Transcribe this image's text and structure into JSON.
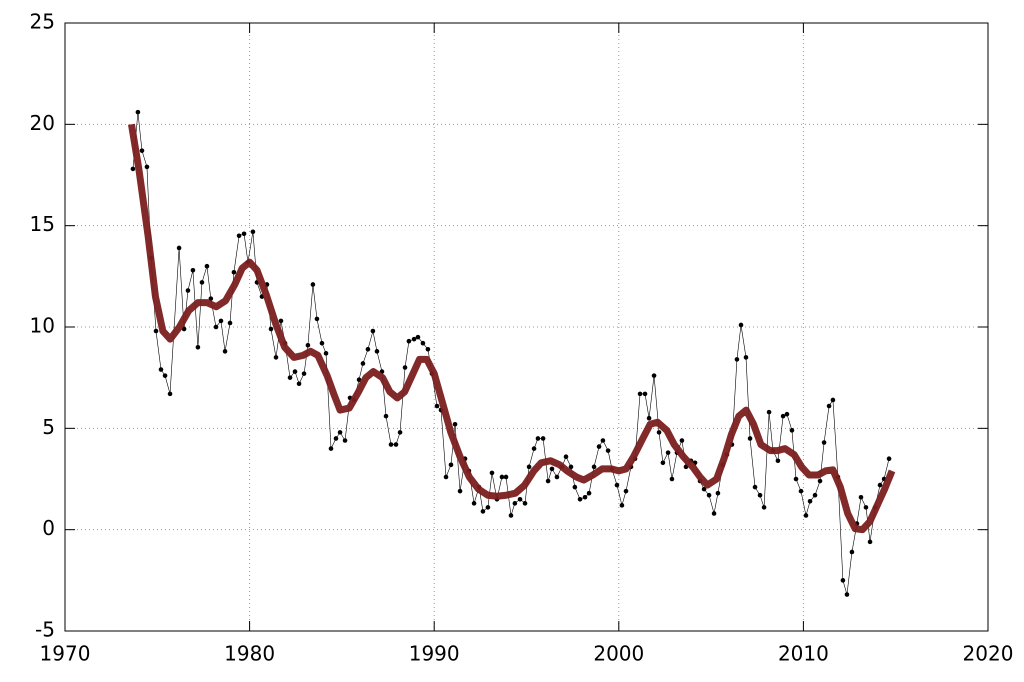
{
  "chart_data": {
    "type": "line",
    "xlim": [
      1970,
      2020
    ],
    "xticks": [
      1970,
      1980,
      1990,
      2000,
      2010,
      2020
    ],
    "ylim": [
      -5,
      25
    ],
    "yticks": [
      -5,
      0,
      5,
      10,
      15,
      20,
      25
    ],
    "grid": true,
    "series": [
      {
        "type": "scatter",
        "color": "#000000",
        "x": [
          1973.68,
          1973.95,
          1974.17,
          1974.44,
          1974.66,
          1974.93,
          1975.2,
          1975.42,
          1975.69,
          1976.18,
          1976.45,
          1976.66,
          1976.93,
          1977.2,
          1977.42,
          1977.69,
          1977.9,
          1978.18,
          1978.45,
          1978.67,
          1978.94,
          1979.15,
          1979.43,
          1979.7,
          1979.91,
          1980.18,
          1980.4,
          1980.67,
          1980.94,
          1981.16,
          1981.43,
          1981.7,
          1981.92,
          1982.19,
          1982.46,
          1982.68,
          1982.95,
          1983.16,
          1983.43,
          1983.65,
          1983.92,
          1984.14,
          1984.41,
          1984.68,
          1984.9,
          1985.17,
          1985.44,
          1985.66,
          1985.93,
          1986.14,
          1986.41,
          1986.68,
          1986.9,
          1987.17,
          1987.39,
          1987.66,
          1987.93,
          1988.15,
          1988.42,
          1988.63,
          1988.91,
          1989.12,
          1989.39,
          1989.66,
          1989.88,
          1990.15,
          1990.37,
          1990.64,
          1990.91,
          1991.13,
          1991.4,
          1991.67,
          1991.88,
          1992.16,
          1992.43,
          1992.64,
          1992.91,
          1993.13,
          1993.4,
          1993.67,
          1993.89,
          1994.16,
          1994.37,
          1994.65,
          1994.92,
          1995.14,
          1995.41,
          1995.62,
          1995.9,
          1996.17,
          1996.38,
          1996.65,
          1996.92,
          1997.14,
          1997.41,
          1997.62,
          1997.9,
          1998.17,
          1998.39,
          1998.66,
          1998.93,
          1999.14,
          1999.42,
          1999.63,
          1999.9,
          2000.17,
          2000.39,
          2000.66,
          2000.88,
          2001.15,
          2001.42,
          2001.64,
          2001.91,
          2002.18,
          2002.39,
          2002.67,
          2002.88,
          2003.15,
          2003.42,
          2003.64,
          2003.91,
          2004.13,
          2004.4,
          2004.62,
          2004.89,
          2005.16,
          2005.37,
          2005.64,
          2005.86,
          2006.13,
          2006.4,
          2006.62,
          2006.89,
          2007.11,
          2007.38,
          2007.65,
          2007.87,
          2008.14,
          2008.35,
          2008.62,
          2008.9,
          2009.11,
          2009.38,
          2009.6,
          2009.87,
          2010.14,
          2010.36,
          2010.63,
          2010.9,
          2011.12,
          2011.39,
          2011.6,
          2011.87,
          2012.14,
          2012.36,
          2012.63,
          2012.9,
          2013.12,
          2013.39,
          2013.61,
          2013.88,
          2014.15,
          2014.37,
          2014.64
        ],
        "values": [
          17.8,
          20.6,
          18.7,
          17.9,
          13.4,
          9.8,
          7.9,
          7.6,
          6.7,
          13.9,
          9.9,
          11.8,
          12.8,
          9.0,
          12.2,
          13.0,
          11.4,
          10.0,
          10.3,
          8.8,
          10.2,
          12.7,
          14.5,
          14.6,
          13.2,
          14.7,
          12.2,
          11.5,
          12.1,
          9.9,
          8.5,
          10.3,
          9.2,
          7.5,
          7.8,
          7.2,
          7.7,
          9.1,
          12.1,
          10.4,
          9.2,
          8.7,
          4.0,
          4.5,
          4.8,
          4.4,
          6.5,
          6.4,
          7.4,
          8.2,
          8.9,
          9.8,
          8.8,
          7.8,
          5.6,
          4.2,
          4.2,
          4.8,
          8.0,
          9.3,
          9.4,
          9.5,
          9.2,
          8.9,
          7.7,
          6.1,
          5.9,
          2.6,
          3.2,
          5.2,
          1.9,
          3.5,
          2.9,
          1.3,
          2.1,
          0.9,
          1.1,
          2.8,
          1.5,
          2.6,
          2.6,
          0.7,
          1.3,
          1.5,
          1.3,
          3.1,
          4.0,
          4.5,
          4.5,
          2.4,
          3.0,
          2.6,
          3.1,
          3.6,
          3.1,
          2.1,
          1.5,
          1.6,
          1.8,
          3.1,
          4.1,
          4.4,
          3.9,
          3.0,
          2.2,
          1.2,
          1.9,
          3.1,
          3.5,
          6.7,
          6.7,
          5.5,
          7.6,
          4.8,
          3.3,
          3.8,
          2.5,
          3.8,
          4.4,
          3.1,
          3.4,
          3.3,
          2.4,
          2.0,
          1.7,
          0.8,
          1.8,
          3.2,
          3.7,
          4.2,
          8.4,
          10.1,
          8.5,
          4.5,
          2.1,
          1.7,
          1.1,
          5.8,
          3.9,
          3.4,
          5.6,
          5.7,
          4.9,
          2.5,
          1.9,
          0.7,
          1.4,
          1.7,
          2.4,
          4.3,
          6.1,
          6.4,
          2.6,
          -2.5,
          -3.2,
          -1.1,
          0.3,
          1.6,
          1.1,
          -0.6,
          1.1,
          2.2,
          2.5,
          3.5
        ]
      },
      {
        "type": "line",
        "color": "#7b1f1f",
        "x": [
          1973.6,
          1974.0,
          1974.5,
          1974.9,
          1975.3,
          1975.7,
          1976.2,
          1976.7,
          1977.2,
          1977.7,
          1978.2,
          1978.7,
          1979.2,
          1979.6,
          1980.0,
          1980.4,
          1980.9,
          1981.4,
          1981.9,
          1982.4,
          1982.9,
          1983.3,
          1983.7,
          1984.2,
          1984.6,
          1984.9,
          1985.4,
          1985.9,
          1986.3,
          1986.7,
          1987.2,
          1987.6,
          1988.0,
          1988.4,
          1988.8,
          1989.2,
          1989.6,
          1990.0,
          1990.5,
          1990.9,
          1991.4,
          1991.9,
          1992.4,
          1992.9,
          1993.4,
          1993.9,
          1994.4,
          1994.9,
          1995.4,
          1995.8,
          1996.3,
          1996.8,
          1997.2,
          1997.7,
          1998.1,
          1998.6,
          1999.1,
          1999.6,
          2000.0,
          2000.4,
          2000.8,
          2001.3,
          2001.7,
          2002.1,
          2002.6,
          2003.0,
          2003.5,
          2004.0,
          2004.4,
          2004.8,
          2005.3,
          2005.7,
          2006.1,
          2006.5,
          2006.9,
          2007.3,
          2007.7,
          2008.2,
          2008.6,
          2009.0,
          2009.5,
          2009.9,
          2010.3,
          2010.8,
          2011.2,
          2011.6,
          2012.0,
          2012.4,
          2012.8,
          2013.2,
          2013.6,
          2014.0,
          2014.4,
          2014.8
        ],
        "values": [
          20.0,
          17.8,
          14.5,
          11.5,
          9.8,
          9.4,
          10.0,
          10.8,
          11.2,
          11.2,
          11.0,
          11.3,
          12.1,
          12.9,
          13.2,
          12.8,
          11.6,
          10.2,
          9.0,
          8.5,
          8.6,
          8.8,
          8.6,
          7.6,
          6.6,
          5.9,
          6.0,
          6.8,
          7.5,
          7.8,
          7.5,
          6.8,
          6.5,
          6.8,
          7.6,
          8.4,
          8.4,
          7.7,
          6.1,
          4.8,
          3.6,
          2.6,
          2.0,
          1.7,
          1.65,
          1.7,
          1.8,
          2.2,
          2.9,
          3.3,
          3.4,
          3.2,
          2.9,
          2.6,
          2.45,
          2.7,
          3.0,
          3.0,
          2.9,
          3.0,
          3.6,
          4.5,
          5.2,
          5.3,
          4.9,
          4.2,
          3.6,
          3.1,
          2.6,
          2.2,
          2.5,
          3.5,
          4.7,
          5.6,
          5.9,
          5.2,
          4.2,
          3.9,
          3.9,
          4.0,
          3.7,
          3.1,
          2.7,
          2.7,
          2.9,
          2.95,
          2.1,
          0.8,
          0.05,
          0.0,
          0.4,
          1.2,
          2.0,
          2.9
        ]
      }
    ]
  }
}
